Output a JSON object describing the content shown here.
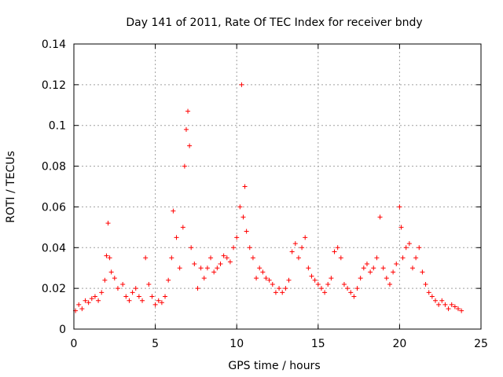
{
  "chart_data": {
    "type": "scatter",
    "title": "Day 141 of 2011, Rate Of TEC Index for receiver bndy",
    "xlabel": "GPS time / hours",
    "ylabel": "ROTI / TECUs",
    "xlim": [
      0,
      25
    ],
    "ylim": [
      0,
      0.14
    ],
    "x_ticks": [
      0,
      5,
      10,
      15,
      20,
      25
    ],
    "y_ticks": [
      0,
      0.02,
      0.04,
      0.06,
      0.08,
      0.1,
      0.12,
      0.14
    ],
    "x_tick_labels": [
      "0",
      "5",
      "10",
      "15",
      "20",
      "25"
    ],
    "y_tick_labels": [
      "0",
      "0.02",
      "0.04",
      "0.06",
      "0.08",
      "0.1",
      "0.12",
      "0.14"
    ],
    "grid": true,
    "marker": "+",
    "color": "#ff0000",
    "series": [
      {
        "x": [
          0.1,
          0.3,
          0.5,
          0.7,
          0.9,
          1.1,
          1.3,
          1.5,
          1.7,
          1.9,
          2.0,
          2.1,
          2.2,
          2.3,
          2.5,
          2.7,
          3.0,
          3.2,
          3.4,
          3.6,
          3.8,
          4.0,
          4.2,
          4.4,
          4.6,
          4.8,
          5.0,
          5.2,
          5.4,
          5.6,
          5.8,
          6.0,
          6.1,
          6.3,
          6.5,
          6.7,
          6.8,
          6.9,
          7.0,
          7.1,
          7.2,
          7.4,
          7.6,
          7.8,
          8.0,
          8.2,
          8.4,
          8.6,
          8.8,
          9.0,
          9.2,
          9.4,
          9.6,
          9.8,
          10.0,
          10.2,
          10.3,
          10.4,
          10.5,
          10.6,
          10.8,
          11.0,
          11.2,
          11.4,
          11.6,
          11.8,
          12.0,
          12.2,
          12.4,
          12.6,
          12.8,
          13.0,
          13.2,
          13.4,
          13.6,
          13.8,
          14.0,
          14.2,
          14.4,
          14.6,
          14.8,
          15.0,
          15.2,
          15.4,
          15.6,
          15.8,
          16.0,
          16.2,
          16.4,
          16.6,
          16.8,
          17.0,
          17.2,
          17.4,
          17.6,
          17.8,
          18.0,
          18.2,
          18.4,
          18.6,
          18.8,
          19.0,
          19.2,
          19.4,
          19.6,
          19.8,
          20.0,
          20.1,
          20.2,
          20.4,
          20.6,
          20.8,
          21.0,
          21.2,
          21.4,
          21.6,
          21.8,
          22.0,
          22.2,
          22.4,
          22.6,
          22.8,
          23.0,
          23.2,
          23.4,
          23.6,
          23.8
        ],
        "y": [
          0.009,
          0.012,
          0.01,
          0.014,
          0.013,
          0.015,
          0.016,
          0.014,
          0.018,
          0.024,
          0.036,
          0.052,
          0.035,
          0.028,
          0.025,
          0.02,
          0.022,
          0.016,
          0.014,
          0.018,
          0.02,
          0.016,
          0.014,
          0.035,
          0.022,
          0.016,
          0.012,
          0.014,
          0.013,
          0.016,
          0.024,
          0.035,
          0.058,
          0.045,
          0.03,
          0.05,
          0.08,
          0.098,
          0.107,
          0.09,
          0.04,
          0.032,
          0.02,
          0.03,
          0.025,
          0.03,
          0.035,
          0.028,
          0.03,
          0.032,
          0.036,
          0.035,
          0.033,
          0.04,
          0.045,
          0.06,
          0.12,
          0.055,
          0.07,
          0.048,
          0.04,
          0.035,
          0.025,
          0.03,
          0.028,
          0.025,
          0.024,
          0.022,
          0.018,
          0.02,
          0.018,
          0.02,
          0.024,
          0.038,
          0.042,
          0.035,
          0.04,
          0.045,
          0.03,
          0.026,
          0.024,
          0.022,
          0.02,
          0.018,
          0.022,
          0.025,
          0.038,
          0.04,
          0.035,
          0.022,
          0.02,
          0.018,
          0.016,
          0.02,
          0.025,
          0.03,
          0.032,
          0.028,
          0.03,
          0.035,
          0.055,
          0.03,
          0.025,
          0.022,
          0.028,
          0.032,
          0.06,
          0.05,
          0.035,
          0.04,
          0.042,
          0.03,
          0.035,
          0.04,
          0.028,
          0.022,
          0.018,
          0.016,
          0.014,
          0.012,
          0.014,
          0.012,
          0.01,
          0.012,
          0.011,
          0.01,
          0.009
        ]
      }
    ]
  }
}
